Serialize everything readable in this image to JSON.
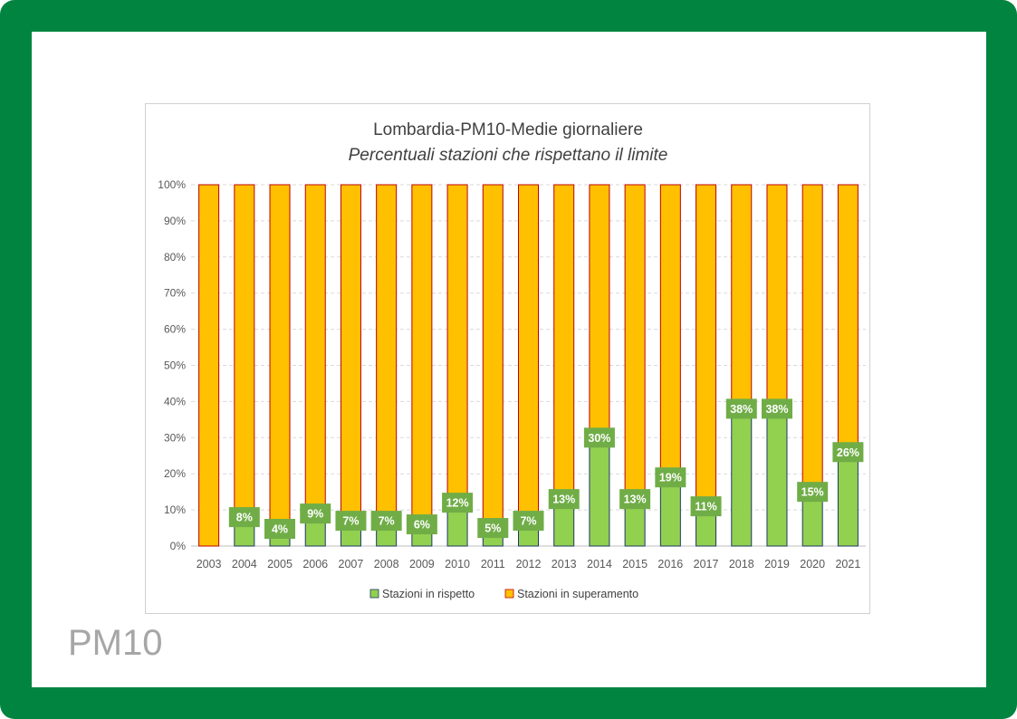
{
  "page": {
    "corner_label": "PM10",
    "colors": {
      "frame": "#00843f",
      "background": "#ffffff"
    }
  },
  "chart_data": {
    "type": "bar",
    "stacked": true,
    "title": "Lombardia-PM10-Medie giornaliere",
    "subtitle": "Percentuali stazioni che rispettano il limite",
    "categories": [
      "2003",
      "2004",
      "2005",
      "2006",
      "2007",
      "2008",
      "2009",
      "2010",
      "2011",
      "2012",
      "2013",
      "2014",
      "2015",
      "2016",
      "2017",
      "2018",
      "2019",
      "2020",
      "2021"
    ],
    "series": [
      {
        "name": "Stazioni in rispetto",
        "color": "#92d050",
        "border": "#1f3864",
        "values": [
          0,
          8,
          4,
          9,
          7,
          7,
          6,
          12,
          5,
          7,
          13,
          30,
          13,
          19,
          11,
          38,
          38,
          15,
          26
        ],
        "labels": [
          "",
          "8%",
          "4%",
          "9%",
          "7%",
          "7%",
          "6%",
          "12%",
          "5%",
          "7%",
          "13%",
          "30%",
          "13%",
          "19%",
          "11%",
          "38%",
          "38%",
          "15%",
          "26%"
        ]
      },
      {
        "name": "Stazioni in superamento",
        "color": "#ffc000",
        "border": "#c00000",
        "values": [
          100,
          92,
          96,
          91,
          93,
          93,
          94,
          88,
          95,
          93,
          87,
          70,
          87,
          81,
          89,
          62,
          62,
          85,
          74
        ]
      }
    ],
    "ylim": [
      0,
      100
    ],
    "yticks": [
      "0%",
      "10%",
      "20%",
      "30%",
      "40%",
      "50%",
      "60%",
      "70%",
      "80%",
      "90%",
      "100%"
    ],
    "grid": true,
    "legend": "bottom",
    "label_color": "#70ad47"
  }
}
